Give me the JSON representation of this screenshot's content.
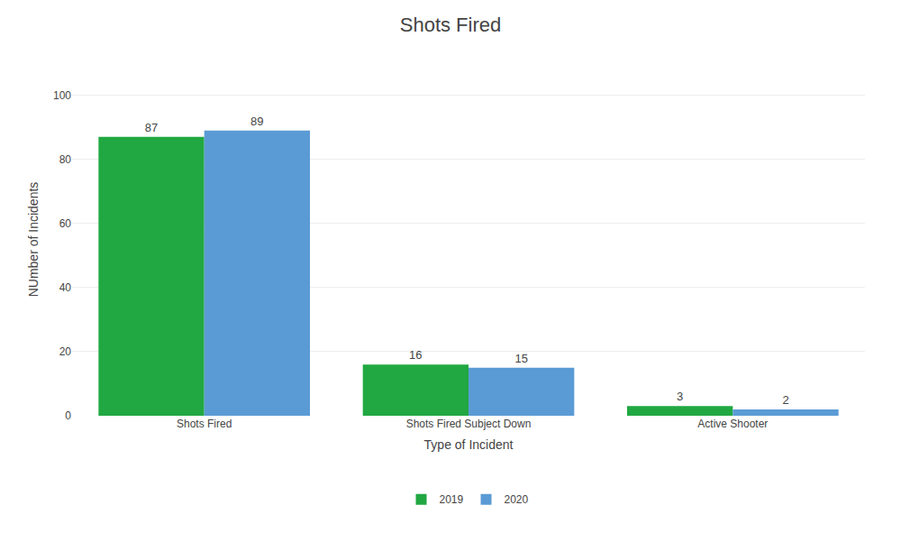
{
  "chart_data": {
    "type": "bar",
    "title": "Shots Fired",
    "xlabel": "Type of Incident",
    "ylabel": "NUmber of Incidents",
    "categories": [
      "Shots Fired",
      "Shots Fired Subject Down",
      "Active Shooter"
    ],
    "series": [
      {
        "name": "2019",
        "color": "#21a842",
        "values": [
          87,
          16,
          3
        ]
      },
      {
        "name": "2020",
        "color": "#5b9bd5",
        "values": [
          89,
          15,
          2
        ]
      }
    ],
    "ylim": [
      0,
      110
    ],
    "yticks": [
      0,
      20,
      40,
      60,
      80,
      100
    ],
    "grid": true,
    "data_labels": true,
    "legend": "bottom"
  }
}
